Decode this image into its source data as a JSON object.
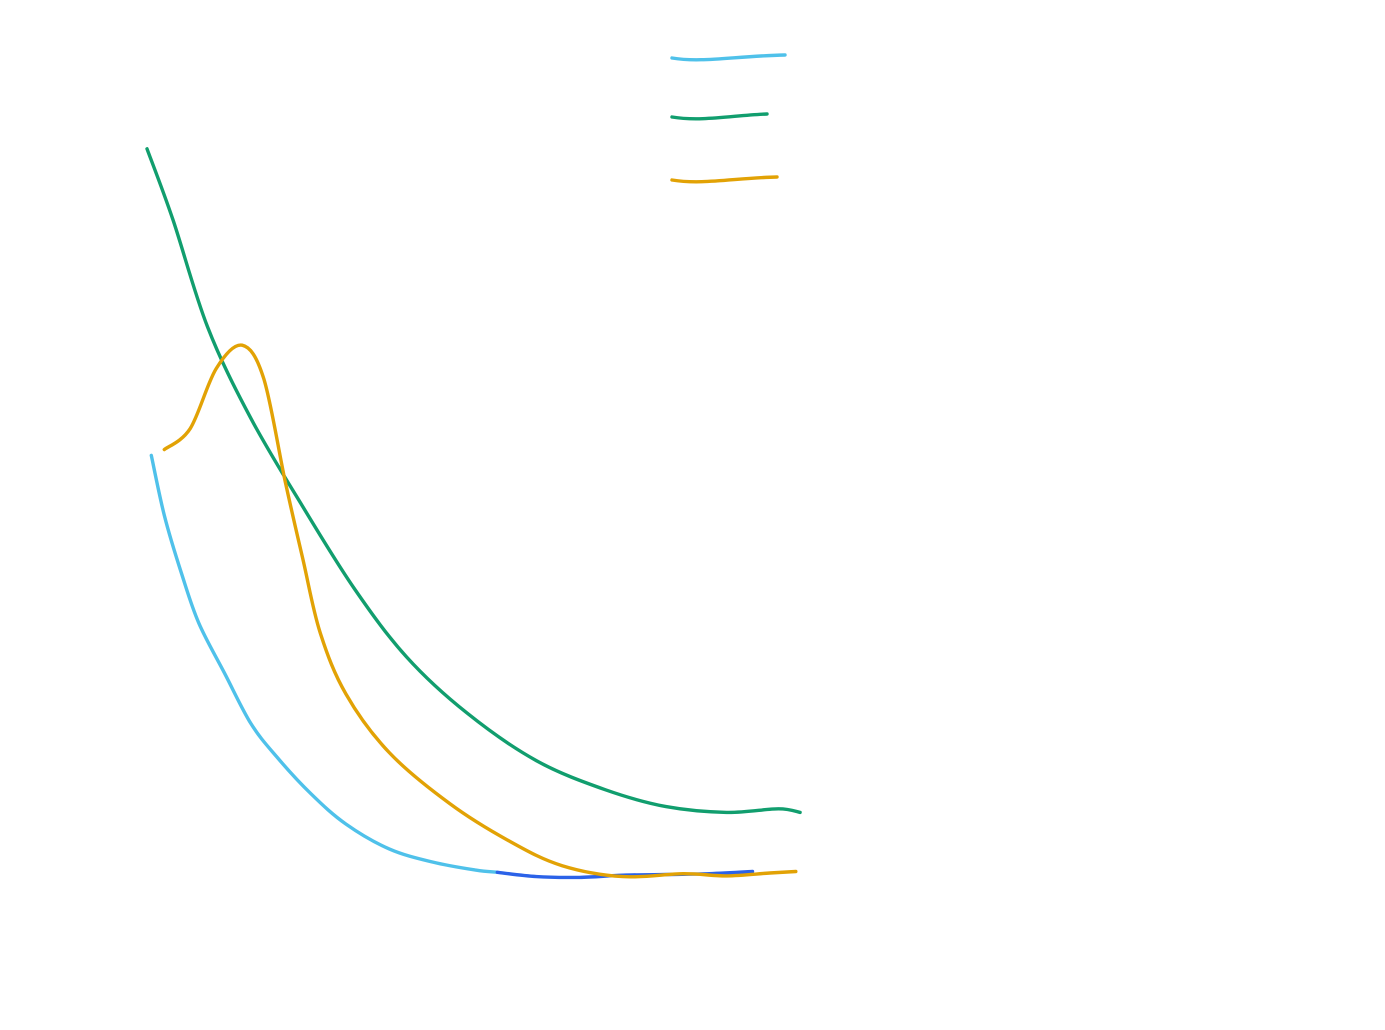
{
  "chart_data": {
    "type": "line",
    "title": "",
    "xlabel": "",
    "ylabel": "",
    "grid": false,
    "axes_visible": false,
    "legend_placement": "top-center",
    "xlim": [
      0,
      100
    ],
    "ylim": [
      0,
      100
    ],
    "series": [
      {
        "color": "#4fc1ea",
        "points": [
          [
            0.5,
            57.2
          ],
          [
            2.0,
            49.0
          ],
          [
            4.0,
            41.0
          ],
          [
            6.0,
            34.2
          ],
          [
            9.0,
            27.3
          ],
          [
            12.0,
            20.5
          ],
          [
            15.0,
            15.9
          ],
          [
            19.0,
            10.8
          ],
          [
            23.0,
            6.7
          ],
          [
            28.0,
            3.3
          ],
          [
            33.0,
            1.5
          ],
          [
            38.0,
            0.4
          ],
          [
            40.5,
            0.1
          ]
        ]
      },
      {
        "color": "#2b62e8",
        "points": [
          [
            40.5,
            0.1
          ],
          [
            45.0,
            -0.5
          ],
          [
            50.0,
            -0.6
          ],
          [
            55.0,
            -0.3
          ],
          [
            60.0,
            -0.2
          ],
          [
            65.0,
            -0.1
          ],
          [
            70.0,
            0.2
          ]
        ]
      },
      {
        "color": "#119e6e",
        "points": [
          [
            0.0,
            99.2
          ],
          [
            3.0,
            89.5
          ],
          [
            7.0,
            74.8
          ],
          [
            12.0,
            62.3
          ],
          [
            18.0,
            50.2
          ],
          [
            24.0,
            38.9
          ],
          [
            30.0,
            29.6
          ],
          [
            37.0,
            21.9
          ],
          [
            45.0,
            15.4
          ],
          [
            53.0,
            11.4
          ],
          [
            60.0,
            9.1
          ],
          [
            67.0,
            8.3
          ],
          [
            73.0,
            8.8
          ],
          [
            75.5,
            8.3
          ]
        ]
      },
      {
        "color": "#e2a205",
        "points": [
          [
            2.0,
            58.0
          ],
          [
            5.0,
            60.9
          ],
          [
            8.0,
            69.1
          ],
          [
            11.0,
            72.3
          ],
          [
            13.5,
            67.7
          ],
          [
            16.0,
            53.5
          ],
          [
            18.0,
            43.1
          ],
          [
            20.0,
            33.0
          ],
          [
            23.0,
            24.5
          ],
          [
            28.0,
            16.5
          ],
          [
            35.0,
            9.5
          ],
          [
            42.0,
            4.3
          ],
          [
            48.0,
            1.0
          ],
          [
            55.0,
            -0.5
          ],
          [
            62.0,
            -0.1
          ],
          [
            67.0,
            -0.4
          ],
          [
            72.0,
            0.0
          ],
          [
            75.0,
            0.2
          ]
        ]
      }
    ]
  },
  "legend": {
    "items": [
      {
        "color": "#4fc1ea"
      },
      {
        "color": "#119e6e"
      },
      {
        "color": "#e2a205"
      }
    ]
  }
}
